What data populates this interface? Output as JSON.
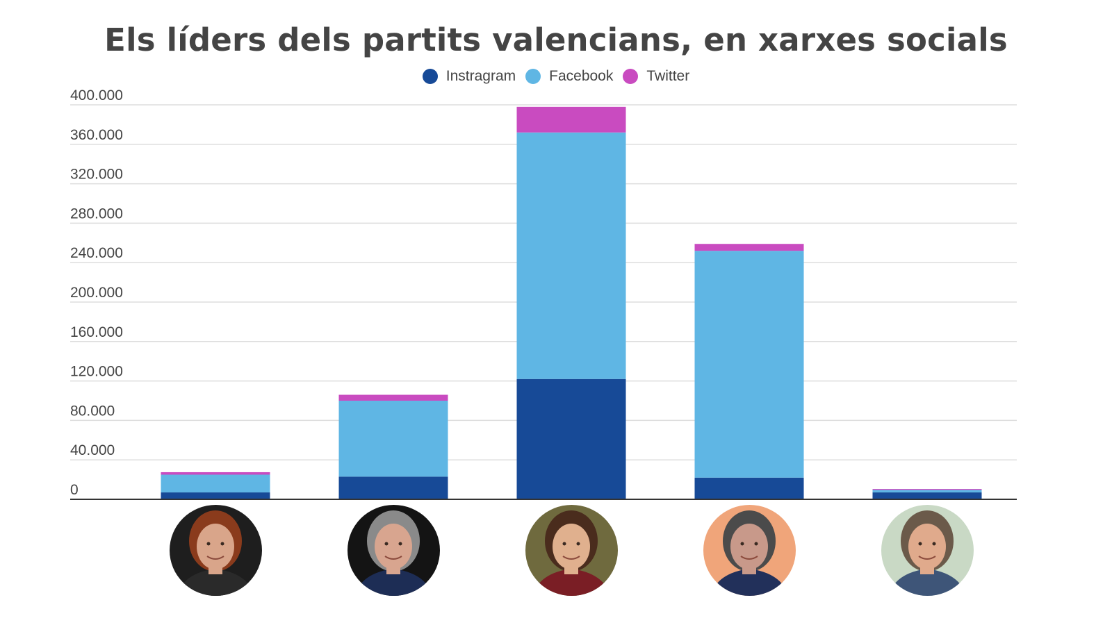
{
  "chart_data": {
    "type": "bar",
    "stacked": true,
    "title": "Els líders dels partits valencians, en xarxes socials",
    "xlabel": "",
    "ylabel": "",
    "ylim": [
      0,
      400000
    ],
    "yticks": [
      0,
      40000,
      80000,
      120000,
      160000,
      200000,
      240000,
      280000,
      320000,
      360000,
      400000
    ],
    "ytick_labels": [
      "0",
      "40.000",
      "80.000",
      "120.000",
      "160.000",
      "200.000",
      "240.000",
      "280.000",
      "320.000",
      "360.000",
      "400.000"
    ],
    "grid": true,
    "legend_position": "top-center",
    "categories": [
      "leader-1",
      "leader-2",
      "leader-3",
      "leader-4",
      "leader-5"
    ],
    "category_display": "portrait photos",
    "series": [
      {
        "name": "Instragram",
        "color": "#174a97",
        "values": [
          7000,
          23000,
          122000,
          22000,
          7000
        ]
      },
      {
        "name": "Facebook",
        "color": "#5fb6e4",
        "values": [
          18000,
          77000,
          250000,
          230000,
          2500
        ]
      },
      {
        "name": "Twitter",
        "color": "#c94bc0",
        "values": [
          2500,
          6000,
          26000,
          7000,
          1000
        ]
      }
    ]
  },
  "avatars": [
    {
      "icon": "portrait-photo",
      "hair": "#8a3b1c",
      "bg": "#1e1e1e",
      "skin": "#d9a58a",
      "clothes": "#2a2a2a"
    },
    {
      "icon": "portrait-photo",
      "hair": "#8a8a8a",
      "bg": "#141414",
      "skin": "#d8a58f",
      "clothes": "#1d2d55"
    },
    {
      "icon": "portrait-photo",
      "hair": "#4a2c1d",
      "bg": "#6f6a3e",
      "skin": "#e0b08e",
      "clothes": "#7a1e25"
    },
    {
      "icon": "portrait-photo",
      "hair": "#4b4b4b",
      "bg": "#f0a57a",
      "skin": "#c8998a",
      "clothes": "#22305a"
    },
    {
      "icon": "portrait-photo",
      "hair": "#6b5a4a",
      "bg": "#c9d9c5",
      "skin": "#e0aa8c",
      "clothes": "#3e5578"
    }
  ],
  "colors": {
    "text": "#444444",
    "grid": "#dddddd",
    "axis": "#333333"
  }
}
